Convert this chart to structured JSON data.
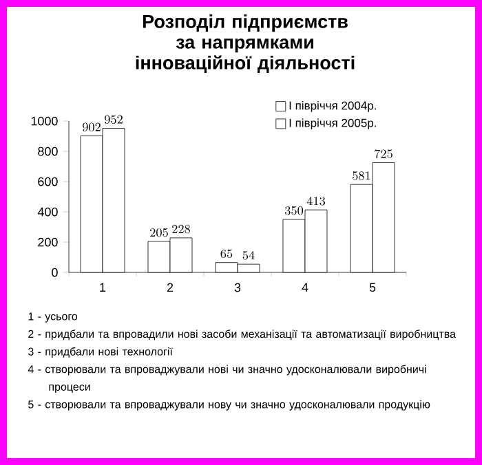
{
  "chart_data": {
    "type": "bar",
    "title": "Розподіл підприємств за напрямками інноваційної діяльності",
    "categories": [
      "1",
      "2",
      "3",
      "4",
      "5"
    ],
    "series": [
      {
        "name": "І півріччя 2004р.",
        "color": "#ffffff",
        "values": [
          902,
          205,
          65,
          350,
          581
        ]
      },
      {
        "name": "І півріччя 2005р.",
        "color": "#ffffff",
        "values": [
          952,
          228,
          54,
          413,
          725
        ]
      }
    ],
    "ylim": [
      0,
      1000
    ],
    "yticks": [
      0,
      200,
      400,
      600,
      800,
      1000
    ],
    "data_labels": true,
    "legend": "top right",
    "grid": false,
    "annotations": [
      "1 - усього",
      "2 - придбали та впровадили нові засоби механізації та автоматизації виробництва",
      "3 - придбали  нові технології",
      "4 - створювали та впроваджували нові чи значно удосконалювали виробничі  процеси",
      "5 - створювали та впроваджували нову чи значно удосконалювали продукцію"
    ]
  }
}
